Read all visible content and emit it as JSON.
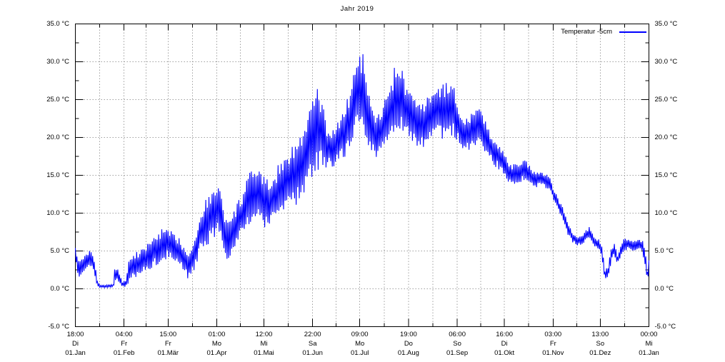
{
  "title": "Jahr 2019",
  "legend": {
    "label": "Temperatur  -5cm"
  },
  "colors": {
    "series": "#0000ff",
    "grid": "#a0a0a0",
    "axis": "#000000",
    "background": "#ffffff"
  },
  "chart_data": {
    "type": "line",
    "title": "Jahr 2019",
    "xlabel": "",
    "ylabel": "",
    "ylim": [
      -5,
      35
    ],
    "ytick_step": 5,
    "ytick_minor_step": 2.5,
    "grid": "dotted, horizontal at 5 C majors, vertical at month and half-month ticks",
    "legend_position": "top-right-inside",
    "ytick_labels": [
      "35.0 °C",
      "30.0 °C",
      "25.0 °C",
      "20.0 °C",
      "15.0 °C",
      "10.0 °C",
      "5.0 °C",
      "0.0 °C",
      "-5.0 °C"
    ],
    "ytick_values": [
      35,
      30,
      25,
      20,
      15,
      10,
      5,
      0,
      -5
    ],
    "xtick_days": [
      0,
      31,
      59,
      90,
      120,
      151,
      181,
      212,
      243,
      273,
      304,
      334,
      365
    ],
    "xtick_labels": [
      {
        "time": "18:00",
        "weekday": "Di",
        "date": "01.Jan"
      },
      {
        "time": "04:00",
        "weekday": "Fr",
        "date": "01.Feb"
      },
      {
        "time": "15:00",
        "weekday": "Fr",
        "date": "01.Mär"
      },
      {
        "time": "01:00",
        "weekday": "Mo",
        "date": "01.Apr"
      },
      {
        "time": "12:00",
        "weekday": "Mi",
        "date": "01.Mai"
      },
      {
        "time": "22:00",
        "weekday": "Sa",
        "date": "01.Jun"
      },
      {
        "time": "09:00",
        "weekday": "Mo",
        "date": "01.Jul"
      },
      {
        "time": "19:00",
        "weekday": "Do",
        "date": "01.Aug"
      },
      {
        "time": "06:00",
        "weekday": "So",
        "date": "01.Sep"
      },
      {
        "time": "16:00",
        "weekday": "Di",
        "date": "01.Okt"
      },
      {
        "time": "03:00",
        "weekday": "Fr",
        "date": "01.Nov"
      },
      {
        "time": "13:00",
        "weekday": "So",
        "date": "01.Dez"
      },
      {
        "time": "00:00",
        "weekday": "Mi",
        "date": "01.Jan"
      }
    ],
    "series": [
      {
        "name": "Temperatur  -5cm",
        "color": "#0000ff",
        "x_unit": "day_of_year_2019",
        "y_unit": "°C",
        "note": "soil temperature at -5 cm depth; dense diurnal oscillation; envelope keyframes [day, min, max] estimated from plot",
        "envelope": [
          [
            0,
            5.0,
            5.5
          ],
          [
            1,
            1.8,
            4.6
          ],
          [
            3,
            1.4,
            3.8
          ],
          [
            5,
            2.0,
            4.6
          ],
          [
            7,
            2.4,
            4.6
          ],
          [
            9,
            2.8,
            5.0
          ],
          [
            11,
            3.0,
            4.8
          ],
          [
            12,
            1.8,
            3.6
          ],
          [
            13,
            0.8,
            2.6
          ],
          [
            14,
            0.2,
            1.0
          ],
          [
            16,
            0.15,
            0.5
          ],
          [
            19,
            0.15,
            0.5
          ],
          [
            24,
            0.2,
            0.6
          ],
          [
            25,
            0.8,
            2.6
          ],
          [
            27,
            1.2,
            3.0
          ],
          [
            28,
            0.6,
            2.2
          ],
          [
            30,
            0.2,
            0.9
          ],
          [
            32,
            0.3,
            1.2
          ],
          [
            34,
            0.8,
            4.0
          ],
          [
            37,
            1.2,
            4.6
          ],
          [
            40,
            1.6,
            5.0
          ],
          [
            43,
            2.0,
            5.6
          ],
          [
            46,
            2.2,
            6.0
          ],
          [
            50,
            2.8,
            7.2
          ],
          [
            53,
            3.2,
            7.6
          ],
          [
            56,
            3.6,
            8.0
          ],
          [
            59,
            4.2,
            7.8
          ],
          [
            63,
            3.4,
            7.4
          ],
          [
            67,
            2.6,
            6.6
          ],
          [
            70,
            1.6,
            5.6
          ],
          [
            73,
            1.2,
            5.2
          ],
          [
            76,
            2.6,
            7.0
          ],
          [
            79,
            4.6,
            9.4
          ],
          [
            82,
            5.4,
            11.6
          ],
          [
            85,
            6.0,
            12.6
          ],
          [
            88,
            6.6,
            13.0
          ],
          [
            91,
            7.4,
            14.8
          ],
          [
            94,
            5.2,
            11.0
          ],
          [
            97,
            3.6,
            9.0
          ],
          [
            100,
            4.6,
            9.8
          ],
          [
            103,
            5.8,
            11.4
          ],
          [
            106,
            6.6,
            12.8
          ],
          [
            109,
            7.6,
            14.4
          ],
          [
            112,
            8.6,
            15.8
          ],
          [
            115,
            9.2,
            16.4
          ],
          [
            118,
            8.8,
            15.6
          ],
          [
            121,
            7.8,
            14.4
          ],
          [
            124,
            8.2,
            14.6
          ],
          [
            127,
            8.8,
            15.4
          ],
          [
            130,
            9.6,
            16.8
          ],
          [
            133,
            10.0,
            17.8
          ],
          [
            136,
            10.4,
            18.6
          ],
          [
            139,
            10.8,
            19.6
          ],
          [
            142,
            11.4,
            19.8
          ],
          [
            145,
            12.2,
            21.0
          ],
          [
            148,
            13.6,
            23.6
          ],
          [
            151,
            14.8,
            25.6
          ],
          [
            154,
            15.4,
            26.4
          ],
          [
            157,
            16.2,
            25.0
          ],
          [
            160,
            16.0,
            21.5
          ],
          [
            163,
            16.0,
            21.0
          ],
          [
            166,
            16.4,
            21.8
          ],
          [
            169,
            16.8,
            23.2
          ],
          [
            172,
            17.4,
            24.4
          ],
          [
            175,
            18.4,
            26.4
          ],
          [
            178,
            20.4,
            30.0
          ],
          [
            180,
            21.4,
            31.4
          ],
          [
            183,
            21.0,
            31.0
          ],
          [
            185,
            19.5,
            27.5
          ],
          [
            188,
            18.0,
            24.5
          ],
          [
            191,
            17.0,
            23.0
          ],
          [
            194,
            17.5,
            23.5
          ],
          [
            197,
            18.5,
            25.0
          ],
          [
            200,
            19.5,
            26.5
          ],
          [
            203,
            20.5,
            29.2
          ],
          [
            206,
            21.0,
            30.4
          ],
          [
            209,
            20.5,
            28.0
          ],
          [
            212,
            19.8,
            26.4
          ],
          [
            215,
            19.5,
            25.5
          ],
          [
            218,
            18.8,
            24.8
          ],
          [
            221,
            18.5,
            24.5
          ],
          [
            224,
            19.0,
            25.5
          ],
          [
            227,
            19.5,
            26.5
          ],
          [
            230,
            19.8,
            27.2
          ],
          [
            233,
            19.8,
            27.0
          ],
          [
            236,
            20.0,
            27.4
          ],
          [
            239,
            20.2,
            27.6
          ],
          [
            242,
            19.8,
            26.0
          ],
          [
            245,
            18.6,
            23.6
          ],
          [
            248,
            18.0,
            22.8
          ],
          [
            251,
            18.2,
            23.0
          ],
          [
            254,
            18.8,
            23.6
          ],
          [
            257,
            19.2,
            24.0
          ],
          [
            260,
            18.4,
            22.8
          ],
          [
            263,
            17.2,
            21.2
          ],
          [
            266,
            16.4,
            20.2
          ],
          [
            269,
            15.8,
            19.4
          ],
          [
            272,
            15.0,
            18.4
          ],
          [
            275,
            14.0,
            17.0
          ],
          [
            278,
            13.6,
            16.4
          ],
          [
            281,
            13.8,
            16.6
          ],
          [
            284,
            14.2,
            17.2
          ],
          [
            287,
            14.2,
            17.0
          ],
          [
            290,
            13.8,
            16.0
          ],
          [
            293,
            13.4,
            15.4
          ],
          [
            296,
            13.6,
            15.6
          ],
          [
            299,
            13.4,
            15.4
          ],
          [
            302,
            12.8,
            14.6
          ],
          [
            304,
            11.8,
            13.4
          ],
          [
            307,
            10.4,
            12.2
          ],
          [
            310,
            9.0,
            10.8
          ],
          [
            313,
            7.2,
            9.0
          ],
          [
            316,
            6.2,
            7.6
          ],
          [
            319,
            5.8,
            7.2
          ],
          [
            322,
            5.6,
            7.0
          ],
          [
            325,
            6.4,
            7.8
          ],
          [
            327,
            6.8,
            8.2
          ],
          [
            329,
            6.0,
            7.4
          ],
          [
            331,
            5.4,
            6.8
          ],
          [
            333,
            5.2,
            6.6
          ],
          [
            335,
            4.2,
            5.6
          ],
          [
            336,
            2.6,
            4.6
          ],
          [
            337,
            1.2,
            2.6
          ],
          [
            339,
            1.4,
            3.0
          ],
          [
            341,
            3.4,
            5.4
          ],
          [
            343,
            4.4,
            6.0
          ],
          [
            345,
            3.2,
            4.6
          ],
          [
            347,
            4.0,
            5.6
          ],
          [
            349,
            5.0,
            6.6
          ],
          [
            352,
            5.2,
            6.6
          ],
          [
            355,
            5.0,
            6.4
          ],
          [
            358,
            5.2,
            6.6
          ],
          [
            361,
            4.8,
            6.4
          ],
          [
            363,
            2.2,
            5.0
          ],
          [
            364,
            1.2,
            2.6
          ],
          [
            365,
            1.6,
            3.8
          ]
        ]
      }
    ]
  }
}
